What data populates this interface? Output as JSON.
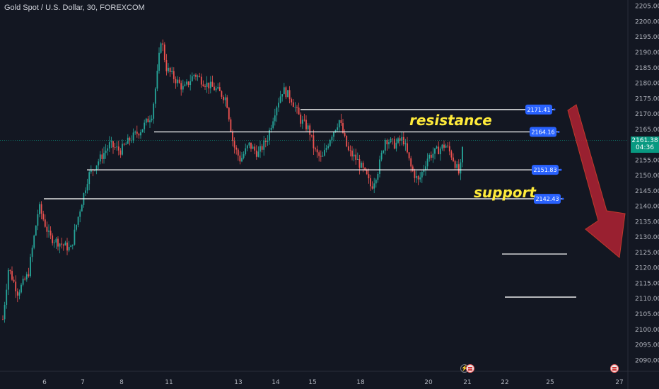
{
  "header": {
    "ticker_text": "Gold Spot / U.S. Dollar, 30, FOREXCOM"
  },
  "price_tag": {
    "price": "2161.38",
    "countdown": "04:36"
  },
  "colors": {
    "background": "#131722",
    "up": "#26a69a",
    "down": "#ef5350",
    "level_label": "#2962ff",
    "annotation": "#ffeb3b",
    "arrow": "#b22232"
  },
  "chart_data": {
    "type": "candlestick",
    "y_axis": {
      "ylim": [
        2088,
        2207
      ],
      "ticks": [
        "2205.00",
        "2200.00",
        "2195.00",
        "2190.00",
        "2185.00",
        "2180.00",
        "2175.00",
        "2170.00",
        "2165.00",
        "2160.00",
        "2155.00",
        "2150.00",
        "2145.00",
        "2140.00",
        "2135.00",
        "2130.00",
        "2125.00",
        "2120.00",
        "2115.00",
        "2110.00",
        "2105.00",
        "2100.00",
        "2095.00",
        "2090.00"
      ]
    },
    "x_axis": {
      "ticks": [
        "6",
        "7",
        "8",
        "11",
        "13",
        "14",
        "15",
        "18",
        "20",
        "21",
        "22",
        "25",
        "27"
      ]
    },
    "price_path": [
      [
        0,
        2095
      ],
      [
        12,
        2120
      ],
      [
        25,
        2112
      ],
      [
        40,
        2118
      ],
      [
        55,
        2140
      ],
      [
        70,
        2130
      ],
      [
        85,
        2128
      ],
      [
        100,
        2126
      ],
      [
        112,
        2138
      ],
      [
        125,
        2150
      ],
      [
        140,
        2155
      ],
      [
        155,
        2160
      ],
      [
        170,
        2158
      ],
      [
        185,
        2162
      ],
      [
        200,
        2165
      ],
      [
        215,
        2170
      ],
      [
        222,
        2182
      ],
      [
        228,
        2195
      ],
      [
        235,
        2185
      ],
      [
        245,
        2182
      ],
      [
        260,
        2178
      ],
      [
        275,
        2183
      ],
      [
        290,
        2180
      ],
      [
        305,
        2178
      ],
      [
        320,
        2175
      ],
      [
        330,
        2160
      ],
      [
        340,
        2155
      ],
      [
        352,
        2160
      ],
      [
        365,
        2157
      ],
      [
        378,
        2162
      ],
      [
        390,
        2172
      ],
      [
        400,
        2178
      ],
      [
        412,
        2175
      ],
      [
        425,
        2168
      ],
      [
        437,
        2165
      ],
      [
        445,
        2158
      ],
      [
        455,
        2155
      ],
      [
        468,
        2163
      ],
      [
        480,
        2168
      ],
      [
        492,
        2158
      ],
      [
        505,
        2155
      ],
      [
        518,
        2150
      ],
      [
        525,
        2146
      ],
      [
        535,
        2152
      ],
      [
        545,
        2162
      ],
      [
        558,
        2160
      ],
      [
        570,
        2162
      ],
      [
        582,
        2152
      ],
      [
        592,
        2148
      ],
      [
        605,
        2156
      ],
      [
        618,
        2158
      ],
      [
        630,
        2160
      ],
      [
        640,
        2156
      ],
      [
        650,
        2150
      ],
      [
        657,
        2164
      ]
    ],
    "levels": [
      {
        "name": "resistance",
        "label": "2171.41",
        "value": 2171.41
      },
      {
        "name": "resistance",
        "label": "2164.16",
        "value": 2164.16
      },
      {
        "name": "support",
        "label": "2151.83",
        "value": 2151.83
      },
      {
        "name": "support",
        "label": "2142.43",
        "value": 2142.43
      },
      {
        "name": "target-1",
        "label": "",
        "value": 2124.5
      },
      {
        "name": "target-2",
        "label": "",
        "value": 2110.5
      }
    ],
    "annotations": [
      "resistance",
      "support"
    ]
  }
}
